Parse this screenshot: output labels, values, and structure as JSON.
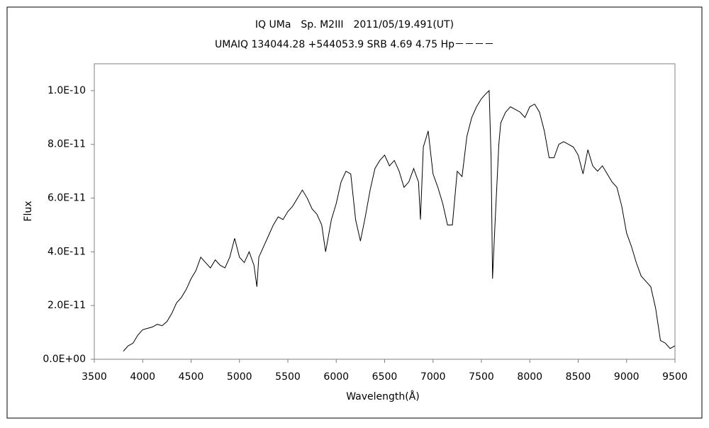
{
  "chart_data": {
    "type": "line",
    "title": "IQ UMa　Sp. M2III　2011/05/19.491(UT)",
    "subtitle": "UMAIQ 134044.28 +544053.9 SRB 4.69 4.75 Hp－－－－",
    "x_label": "Wavelength(Å)",
    "y_label": "Flux",
    "xlim": [
      3500,
      9500
    ],
    "xticks": [
      3500,
      4000,
      4500,
      5000,
      5500,
      6000,
      6500,
      7000,
      7500,
      8000,
      8500,
      9000,
      9500
    ],
    "ylim": [
      0,
      1.1e-10
    ],
    "yticks": [
      {
        "value": 0,
        "label": "0.0E+00"
      },
      {
        "value": 2e-11,
        "label": "2.0E-11"
      },
      {
        "value": 4e-11,
        "label": "4.0E-11"
      },
      {
        "value": 6e-11,
        "label": "6.0E-11"
      },
      {
        "value": 8e-11,
        "label": "8.0E-11"
      },
      {
        "value": 1e-10,
        "label": "1.0E-10"
      }
    ],
    "grid": false,
    "x": [
      3800,
      3850,
      3900,
      3950,
      4000,
      4050,
      4100,
      4150,
      4200,
      4250,
      4300,
      4350,
      4400,
      4450,
      4500,
      4550,
      4600,
      4650,
      4700,
      4750,
      4800,
      4850,
      4900,
      4950,
      5000,
      5050,
      5100,
      5150,
      5180,
      5200,
      5250,
      5300,
      5350,
      5400,
      5450,
      5500,
      5550,
      5600,
      5650,
      5700,
      5750,
      5800,
      5850,
      5890,
      5950,
      6000,
      6050,
      6100,
      6150,
      6200,
      6250,
      6300,
      6350,
      6400,
      6450,
      6500,
      6550,
      6600,
      6650,
      6700,
      6750,
      6800,
      6850,
      6870,
      6900,
      6950,
      7000,
      7050,
      7100,
      7150,
      7200,
      7250,
      7300,
      7350,
      7400,
      7450,
      7500,
      7550,
      7580,
      7600,
      7615,
      7640,
      7680,
      7700,
      7750,
      7800,
      7850,
      7900,
      7950,
      8000,
      8050,
      8100,
      8150,
      8200,
      8250,
      8300,
      8350,
      8400,
      8450,
      8500,
      8550,
      8600,
      8650,
      8700,
      8750,
      8800,
      8850,
      8900,
      8950,
      9000,
      9050,
      9100,
      9150,
      9200,
      9250,
      9300,
      9350,
      9400,
      9450,
      9500
    ],
    "series": [
      {
        "name": "Flux",
        "color": "#000000",
        "values": [
          3e-12,
          5e-12,
          6e-12,
          9e-12,
          1.1e-11,
          1.15e-11,
          1.2e-11,
          1.3e-11,
          1.25e-11,
          1.4e-11,
          1.7e-11,
          2.1e-11,
          2.3e-11,
          2.6e-11,
          3e-11,
          3.3e-11,
          3.8e-11,
          3.6e-11,
          3.4e-11,
          3.7e-11,
          3.5e-11,
          3.4e-11,
          3.8e-11,
          4.5e-11,
          3.8e-11,
          3.6e-11,
          4e-11,
          3.5e-11,
          2.7e-11,
          3.8e-11,
          4.2e-11,
          4.6e-11,
          5e-11,
          5.3e-11,
          5.2e-11,
          5.5e-11,
          5.7e-11,
          6e-11,
          6.3e-11,
          6e-11,
          5.6e-11,
          5.4e-11,
          5e-11,
          4e-11,
          5.2e-11,
          5.8e-11,
          6.6e-11,
          7e-11,
          6.9e-11,
          5.2e-11,
          4.4e-11,
          5.3e-11,
          6.3e-11,
          7.1e-11,
          7.4e-11,
          7.6e-11,
          7.2e-11,
          7.4e-11,
          7e-11,
          6.4e-11,
          6.6e-11,
          7.1e-11,
          6.6e-11,
          5.2e-11,
          7.9e-11,
          8.5e-11,
          6.9e-11,
          6.4e-11,
          5.8e-11,
          5e-11,
          5e-11,
          7e-11,
          6.8e-11,
          8.3e-11,
          9e-11,
          9.4e-11,
          9.7e-11,
          9.9e-11,
          1e-10,
          7.5e-11,
          3e-11,
          5e-11,
          8e-11,
          8.8e-11,
          9.2e-11,
          9.4e-11,
          9.3e-11,
          9.2e-11,
          9e-11,
          9.4e-11,
          9.5e-11,
          9.2e-11,
          8.5e-11,
          7.5e-11,
          7.5e-11,
          8e-11,
          8.1e-11,
          8e-11,
          7.9e-11,
          7.6e-11,
          6.9e-11,
          7.8e-11,
          7.2e-11,
          7e-11,
          7.2e-11,
          6.9e-11,
          6.6e-11,
          6.4e-11,
          5.7e-11,
          4.7e-11,
          4.2e-11,
          3.6e-11,
          3.1e-11,
          2.9e-11,
          2.7e-11,
          1.9e-11,
          7e-12,
          6e-12,
          4e-12,
          5e-12
        ]
      }
    ]
  }
}
